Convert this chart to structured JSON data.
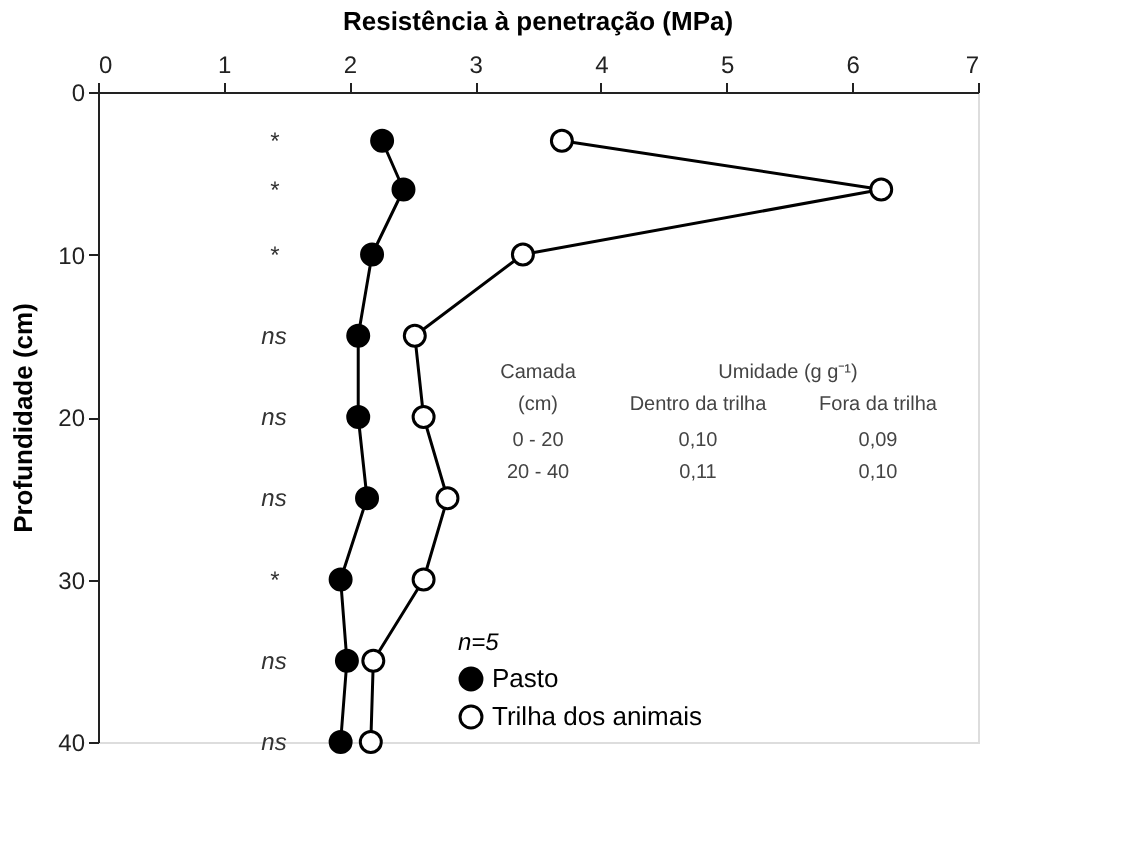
{
  "chart_data": {
    "type": "line",
    "title": "Resistência à penetração (MPa)",
    "ylabel": "Profundidade (cm)",
    "xlim": [
      0,
      7
    ],
    "xticks": [
      {
        "value": 0,
        "label": "0"
      },
      {
        "value": 1,
        "label": "1"
      },
      {
        "value": 2,
        "label": "2"
      },
      {
        "value": 3,
        "label": "3"
      },
      {
        "value": 4,
        "label": "4"
      },
      {
        "value": 5,
        "label": "5"
      },
      {
        "value": 6,
        "label": "6"
      },
      {
        "value": 7,
        "label": "7"
      }
    ],
    "ylim": [
      40,
      0
    ],
    "yticks": [
      0,
      10,
      20,
      30,
      40
    ],
    "series": [
      {
        "name": "Pasto",
        "color": "#000000",
        "x": [
          2.26,
          2.43,
          2.18,
          2.07,
          2.07,
          2.14,
          1.93,
          1.98,
          1.93
        ],
        "values": [
          3,
          6,
          10,
          15,
          20,
          25,
          30,
          35,
          40
        ]
      },
      {
        "name": "Trilha dos animais",
        "color": "#ffffff",
        "x": [
          3.69,
          6.23,
          3.38,
          2.52,
          2.59,
          2.78,
          2.59,
          2.19,
          2.17
        ],
        "values": [
          3,
          6,
          10,
          15,
          20,
          25,
          30,
          35,
          40
        ]
      }
    ],
    "marker": "circle",
    "line_style": "solid",
    "grid": false,
    "legend": "bottom",
    "legend_title": "n=5",
    "annotations": [
      "*",
      "*",
      "*",
      "ns",
      "ns",
      "ns",
      "*",
      "ns",
      "ns",
      "Camada",
      "Umidade (g g⁻¹)",
      "(cm)",
      "Dentro da trilha",
      "Fora da trilha",
      "0 - 20",
      "0,10",
      "0,09",
      "20 - 40",
      "0,11",
      "0,10"
    ]
  }
}
